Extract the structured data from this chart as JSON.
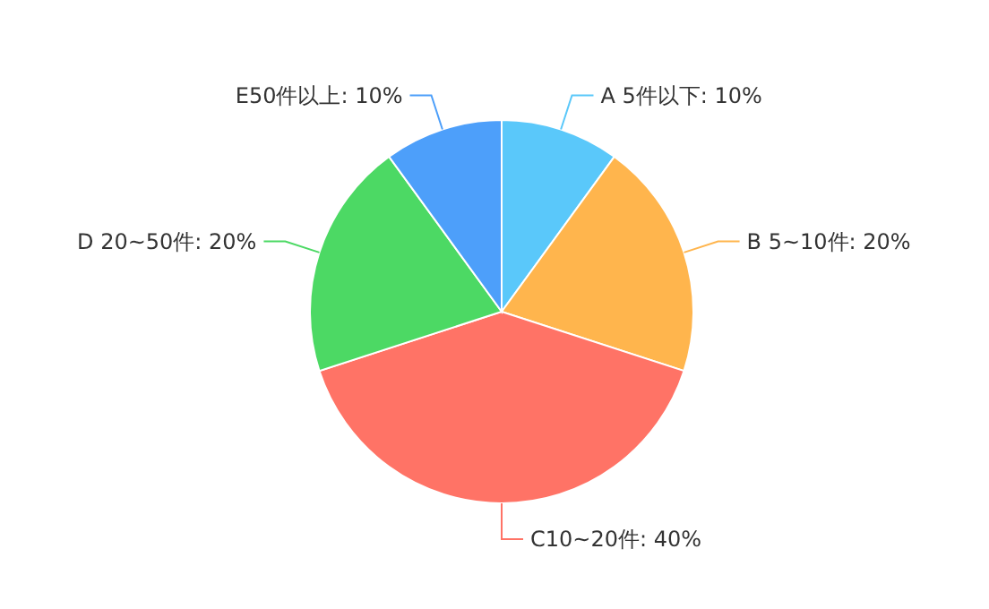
{
  "chart_data": {
    "type": "pie",
    "categories": [
      "A 5件以下",
      "B 5~10件",
      "C10~20件",
      "D 20~50件",
      "E50件以上"
    ],
    "values": [
      10,
      20,
      40,
      20,
      10
    ],
    "value_labels": [
      "10%",
      "20%",
      "40%",
      "20%",
      "10%"
    ],
    "colors": [
      "#5ac8fa",
      "#ffb54d",
      "#ff7366",
      "#4cd964",
      "#4d9ffa"
    ]
  }
}
